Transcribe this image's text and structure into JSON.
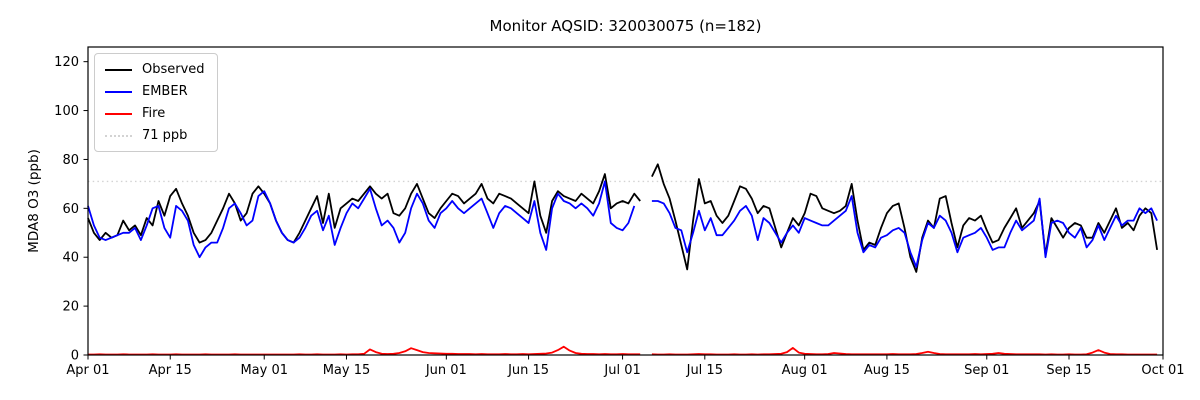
{
  "title": "Monitor AQSID: 320030075 (n=182)",
  "chart_data": {
    "type": "line",
    "title": "Monitor AQSID: 320030075 (n=182)",
    "xlabel": "",
    "ylabel": "MDA8 O3 (ppb)",
    "ylim": [
      0,
      126
    ],
    "y_ticks": [
      0,
      20,
      40,
      60,
      80,
      100,
      120
    ],
    "x_start_date": "Apr 01",
    "x_end_date": "Oct 01",
    "x_range_days": 183,
    "x_ticks": [
      {
        "day": 0,
        "label": "Apr 01"
      },
      {
        "day": 14,
        "label": "Apr 15"
      },
      {
        "day": 30,
        "label": "May 01"
      },
      {
        "day": 44,
        "label": "May 15"
      },
      {
        "day": 61,
        "label": "Jun 01"
      },
      {
        "day": 75,
        "label": "Jun 15"
      },
      {
        "day": 91,
        "label": "Jul 01"
      },
      {
        "day": 105,
        "label": "Jul 15"
      },
      {
        "day": 122,
        "label": "Aug 01"
      },
      {
        "day": 136,
        "label": "Aug 15"
      },
      {
        "day": 153,
        "label": "Sep 01"
      },
      {
        "day": 167,
        "label": "Sep 15"
      },
      {
        "day": 183,
        "label": "Oct 01"
      }
    ],
    "grid": false,
    "legend_position": "upper-left",
    "reference_line": {
      "label": "71 ppb",
      "value": 71,
      "color": "#d3d3d3",
      "style": "dotted"
    },
    "legend": [
      {
        "label": "Observed",
        "color": "#000000",
        "style": "solid"
      },
      {
        "label": "EMBER",
        "color": "#0000ff",
        "style": "solid"
      },
      {
        "label": "Fire",
        "color": "#ff0000",
        "style": "solid"
      },
      {
        "label": "71 ppb",
        "color": "#d3d3d3",
        "style": "dotted"
      }
    ],
    "series": [
      {
        "name": "Observed",
        "color": "#000000",
        "values": [
          56,
          50,
          47,
          50,
          48,
          49,
          55,
          51,
          53,
          49,
          56,
          53,
          63,
          57,
          65,
          68,
          62,
          57,
          50,
          46,
          47,
          50,
          55,
          60,
          66,
          62,
          55,
          58,
          66,
          69,
          66,
          62,
          55,
          50,
          47,
          46,
          50,
          55,
          60,
          65,
          54,
          66,
          52,
          60,
          62,
          64,
          63,
          66,
          69,
          66,
          64,
          66,
          58,
          57,
          60,
          66,
          70,
          64,
          58,
          56,
          60,
          63,
          66,
          65,
          62,
          64,
          66,
          70,
          64,
          62,
          66,
          65,
          64,
          62,
          60,
          58,
          71,
          57,
          50,
          63,
          67,
          65,
          64,
          63,
          66,
          64,
          62,
          67,
          74,
          60,
          62,
          63,
          62,
          66,
          63,
          null,
          73,
          78,
          70,
          64,
          55,
          45,
          35,
          55,
          72,
          62,
          63,
          57,
          54,
          57,
          63,
          69,
          68,
          64,
          58,
          61,
          60,
          52,
          44,
          50,
          56,
          53,
          58,
          66,
          65,
          60,
          59,
          58,
          59,
          61,
          70,
          55,
          43,
          46,
          45,
          52,
          58,
          61,
          62,
          52,
          40,
          34,
          48,
          55,
          52,
          64,
          65,
          54,
          44,
          53,
          56,
          55,
          57,
          51,
          46,
          47,
          52,
          56,
          60,
          52,
          55,
          58,
          63,
          41,
          56,
          52,
          48,
          52,
          54,
          53,
          48,
          48,
          54,
          50,
          55,
          60,
          52,
          54,
          51,
          57,
          60,
          58,
          43
        ]
      },
      {
        "name": "EMBER",
        "color": "#0000ff",
        "values": [
          61,
          53,
          48,
          47,
          48,
          49,
          50,
          50,
          52,
          47,
          53,
          60,
          61,
          52,
          48,
          61,
          59,
          55,
          45,
          40,
          44,
          46,
          46,
          52,
          60,
          62,
          58,
          53,
          55,
          65,
          67,
          62,
          55,
          50,
          47,
          46,
          48,
          52,
          57,
          59,
          51,
          57,
          45,
          52,
          58,
          62,
          60,
          64,
          68,
          60,
          53,
          55,
          52,
          46,
          50,
          60,
          66,
          62,
          55,
          52,
          58,
          60,
          63,
          60,
          58,
          60,
          62,
          64,
          58,
          52,
          58,
          61,
          60,
          58,
          56,
          54,
          63,
          50,
          43,
          60,
          66,
          63,
          62,
          60,
          62,
          60,
          57,
          62,
          71,
          54,
          52,
          51,
          54,
          61,
          null,
          null,
          63,
          63,
          62,
          58,
          52,
          51,
          42,
          50,
          59,
          51,
          56,
          49,
          49,
          52,
          55,
          59,
          61,
          57,
          47,
          56,
          54,
          50,
          46,
          50,
          53,
          50,
          56,
          55,
          54,
          53,
          53,
          55,
          57,
          59,
          65,
          50,
          42,
          45,
          44,
          48,
          49,
          51,
          52,
          50,
          42,
          36,
          47,
          54,
          52,
          57,
          55,
          50,
          42,
          48,
          49,
          50,
          52,
          48,
          43,
          44,
          44,
          50,
          55,
          51,
          53,
          55,
          64,
          40,
          54,
          55,
          54,
          50,
          48,
          52,
          44,
          47,
          53,
          47,
          52,
          57,
          53,
          55,
          55,
          60,
          58,
          60,
          55
        ]
      },
      {
        "name": "Fire",
        "color": "#ff0000",
        "values": [
          0.2,
          0.2,
          0.3,
          0.2,
          0.2,
          0.2,
          0.3,
          0.2,
          0.2,
          0.2,
          0.2,
          0.3,
          0.2,
          0.2,
          0.2,
          0.3,
          0.2,
          0.2,
          0.2,
          0.2,
          0.3,
          0.2,
          0.2,
          0.2,
          0.2,
          0.3,
          0.2,
          0.2,
          0.2,
          0.2,
          0.2,
          0.2,
          0.2,
          0.2,
          0.2,
          0.2,
          0.3,
          0.2,
          0.2,
          0.3,
          0.2,
          0.2,
          0.2,
          0.3,
          0.2,
          0.3,
          0.3,
          0.5,
          2.3,
          1.2,
          0.5,
          0.4,
          0.5,
          0.8,
          1.5,
          2.8,
          2.0,
          1.2,
          0.8,
          0.7,
          0.6,
          0.5,
          0.5,
          0.4,
          0.4,
          0.4,
          0.3,
          0.4,
          0.3,
          0.3,
          0.3,
          0.4,
          0.3,
          0.3,
          0.4,
          0.3,
          0.4,
          0.5,
          0.6,
          1.0,
          2.0,
          3.4,
          1.8,
          0.8,
          0.5,
          0.4,
          0.4,
          0.3,
          0.4,
          0.3,
          0.3,
          0.4,
          0.3,
          0.3,
          0.3,
          null,
          0.3,
          0.2,
          0.2,
          0.3,
          0.2,
          0.2,
          0.2,
          0.3,
          0.4,
          0.3,
          0.3,
          0.2,
          0.2,
          0.2,
          0.3,
          0.2,
          0.2,
          0.3,
          0.2,
          0.3,
          0.3,
          0.4,
          0.5,
          1.2,
          2.9,
          1.0,
          0.5,
          0.4,
          0.3,
          0.3,
          0.4,
          0.8,
          0.6,
          0.4,
          0.3,
          0.3,
          0.3,
          0.3,
          0.3,
          0.3,
          0.3,
          0.4,
          0.3,
          0.3,
          0.3,
          0.4,
          0.8,
          1.3,
          0.8,
          0.4,
          0.3,
          0.3,
          0.3,
          0.3,
          0.3,
          0.4,
          0.3,
          0.4,
          0.5,
          0.8,
          0.5,
          0.4,
          0.3,
          0.3,
          0.3,
          0.3,
          0.3,
          0.2,
          0.3,
          0.2,
          0.2,
          0.3,
          0.2,
          0.2,
          0.3,
          1.0,
          2.0,
          1.0,
          0.4,
          0.3,
          0.3,
          0.2,
          0.2,
          0.2,
          0.2,
          0.2,
          0.2
        ]
      }
    ]
  }
}
